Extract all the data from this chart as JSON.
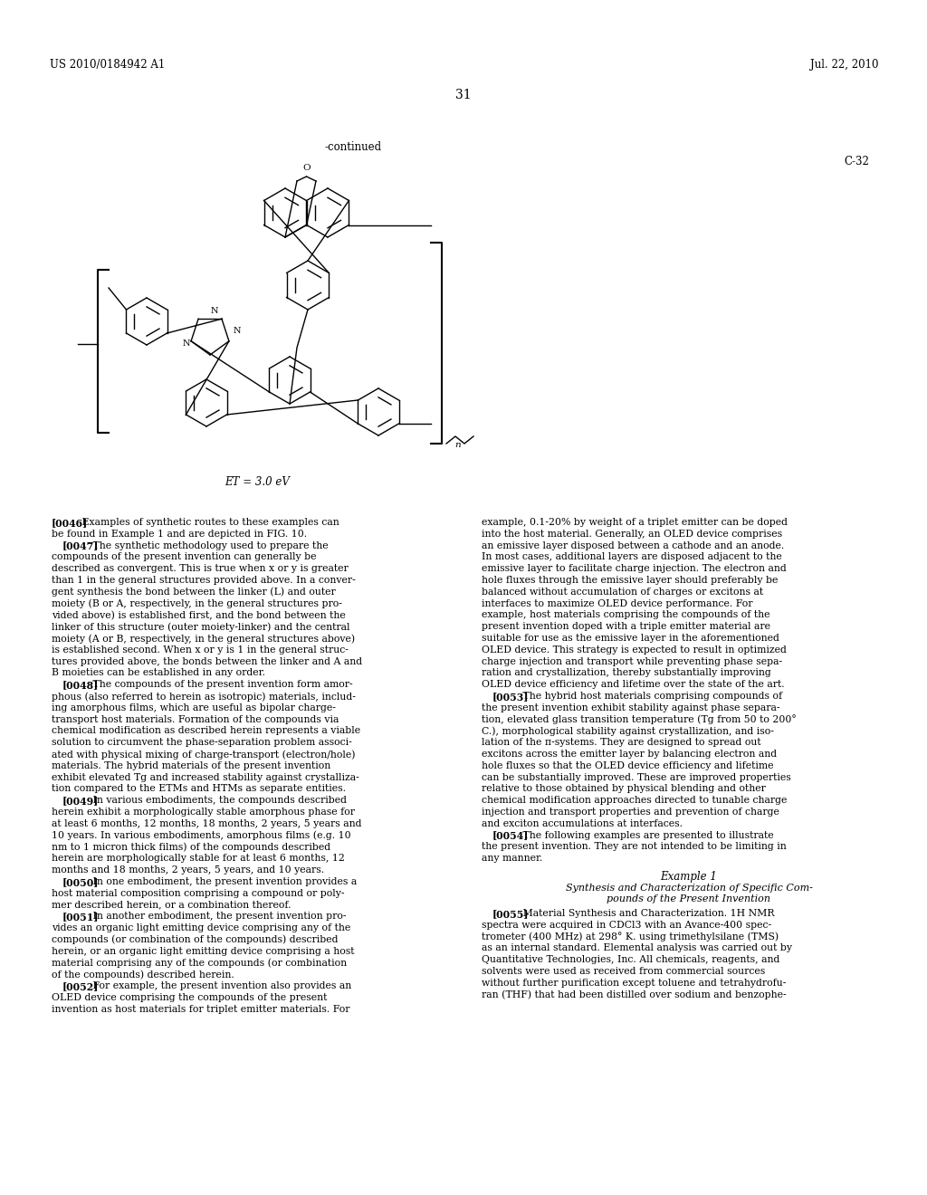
{
  "background_color": "#ffffff",
  "header_left": "US 2010/0184942 A1",
  "header_right": "Jul. 22, 2010",
  "page_number": "31",
  "continued_label": "-continued",
  "compound_label": "C-32",
  "energy_label": "ET = 3.0 eV",
  "col1_text": "[0046]   Examples of synthetic routes to these examples can\nbe found in Example 1 and are depicted in FIG. 10.\n   [0047]   The synthetic methodology used to prepare the\ncompounds of the present invention can generally be\ndescribed as convergent. This is true when x or y is greater\nthan 1 in the general structures provided above. In a conver-\ngent synthesis the bond between the linker (L) and outer\nmoiety (B or A, respectively, in the general structures pro-\nvided above) is established first, and the bond between the\nlinker of this structure (outer moiety-linker) and the central\nmoiety (A or B, respectively, in the general structures above)\nis established second. When x or y is 1 in the general struc-\ntures provided above, the bonds between the linker and A and\nB moieties can be established in any order.\n   [0048]   The compounds of the present invention form amor-\nphous (also referred to herein as isotropic) materials, includ-\ning amorphous films, which are useful as bipolar charge-\ntransport host materials. Formation of the compounds via\nchemical modification as described herein represents a viable\nsolution to circumvent the phase-separation problem associ-\nated with physical mixing of charge-transport (electron/hole)\nmaterials. The hybrid materials of the present invention\nexhibit elevated Tg and increased stability against crystalliza-\ntion compared to the ETMs and HTMs as separate entities.\n   [0049]   In various embodiments, the compounds described\nherein exhibit a morphologically stable amorphous phase for\nat least 6 months, 12 months, 18 months, 2 years, 5 years and\n10 years. In various embodiments, amorphous films (e.g. 10\nnm to 1 micron thick films) of the compounds described\nherein are morphologically stable for at least 6 months, 12\nmonths and 18 months, 2 years, 5 years, and 10 years.\n   [0050]   In one embodiment, the present invention provides a\nhost material composition comprising a compound or poly-\nmer described herein, or a combination thereof.\n   [0051]   In another embodiment, the present invention pro-\nvides an organic light emitting device comprising any of the\ncompounds (or combination of the compounds) described\nherein, or an organic light emitting device comprising a host\nmaterial comprising any of the compounds (or combination\nof the compounds) described herein.\n   [0052]   For example, the present invention also provides an\nOLED device comprising the compounds of the present\ninvention as host materials for triplet emitter materials. For",
  "col2_text": "example, 0.1-20% by weight of a triplet emitter can be doped\ninto the host material. Generally, an OLED device comprises\nan emissive layer disposed between a cathode and an anode.\nIn most cases, additional layers are disposed adjacent to the\nemissive layer to facilitate charge injection. The electron and\nhole fluxes through the emissive layer should preferably be\nbalanced without accumulation of charges or excitons at\ninterfaces to maximize OLED device performance. For\nexample, host materials comprising the compounds of the\npresent invention doped with a triple emitter material are\nsuitable for use as the emissive layer in the aforementioned\nOLED device. This strategy is expected to result in optimized\ncharge injection and transport while preventing phase sepa-\nration and crystallization, thereby substantially improving\nOLED device efficiency and lifetime over the state of the art.\n   [0053]   The hybrid host materials comprising compounds of\nthe present invention exhibit stability against phase separa-\ntion, elevated glass transition temperature (Tg from 50 to 200°\nC.), morphological stability against crystallization, and iso-\nlation of the π-systems. They are designed to spread out\nexcitons across the emitter layer by balancing electron and\nhole fluxes so that the OLED device efficiency and lifetime\ncan be substantially improved. These are improved properties\nrelative to those obtained by physical blending and other\nchemical modification approaches directed to tunable charge\ninjection and transport properties and prevention of charge\nand exciton accumulations at interfaces.\n   [0054]   The following examples are presented to illustrate\nthe present invention. They are not intended to be limiting in\nany manner.",
  "example_header": "Example 1",
  "example_subheader1": "Synthesis and Characterization of Specific Com-",
  "example_subheader2": "pounds of the Present Invention",
  "col2_bottom": "   [0055]   Material Synthesis and Characterization. 1H NMR\nspectra were acquired in CDCl3 with an Avance-400 spec-\ntrometer (400 MHz) at 298° K. using trimethylsilane (TMS)\nas an internal standard. Elemental analysis was carried out by\nQuantitative Technologies, Inc. All chemicals, reagents, and\nsolvents were used as received from commercial sources\nwithout further purification except toluene and tetrahydrofu-\nran (THF) that had been distilled over sodium and benzophe-"
}
